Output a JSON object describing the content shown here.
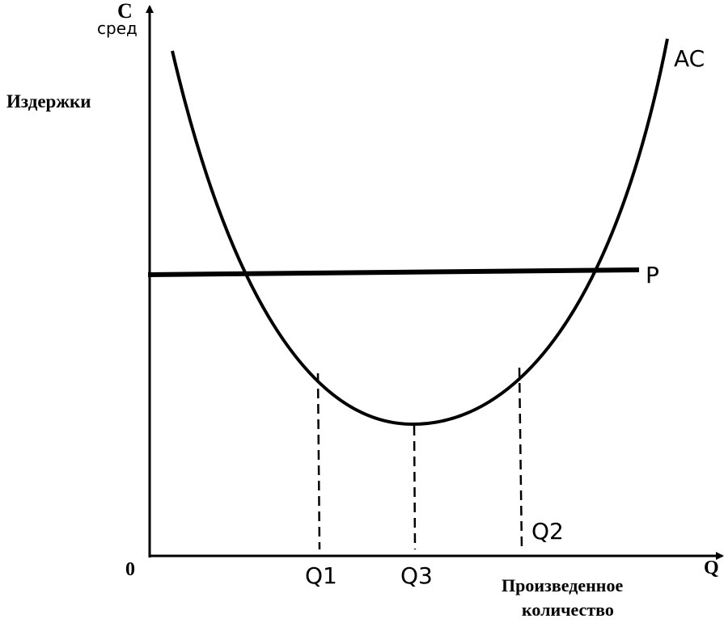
{
  "axes": {
    "y_symbol": "C",
    "y_subscript": "сред",
    "y_label": "Издержки",
    "origin": "0",
    "x_symbol": "Q",
    "x_label": [
      "Произведенное",
      "количество"
    ]
  },
  "curves": {
    "average_cost": "AC",
    "price": "P"
  },
  "quantities": [
    "Q1",
    "Q3",
    "Q2"
  ]
}
